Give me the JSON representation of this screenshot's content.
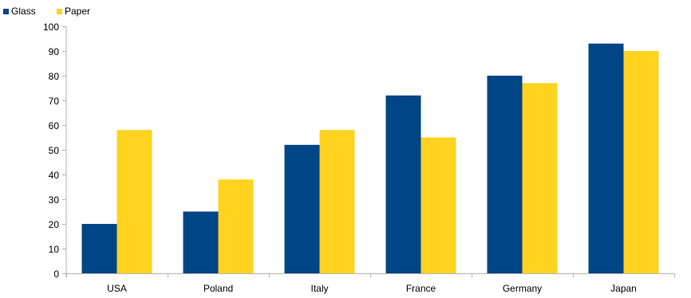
{
  "chart_data": {
    "type": "bar",
    "title": "",
    "xlabel": "",
    "ylabel": "",
    "categories": [
      "USA",
      "Poland",
      "Italy",
      "France",
      "Germany",
      "Japan"
    ],
    "series": [
      {
        "name": "Glass",
        "color": "#004586",
        "values": [
          20,
          25,
          52,
          72,
          80,
          93
        ]
      },
      {
        "name": "Paper",
        "color": "#ffd320",
        "values": [
          58,
          38,
          58,
          55,
          77,
          90
        ]
      }
    ],
    "ylim": [
      0,
      100
    ],
    "yticks": [
      "0",
      "10",
      "20",
      "30",
      "40",
      "50",
      "60",
      "70",
      "80",
      "90",
      "100"
    ],
    "grid": false,
    "legend_position": "top-left"
  }
}
